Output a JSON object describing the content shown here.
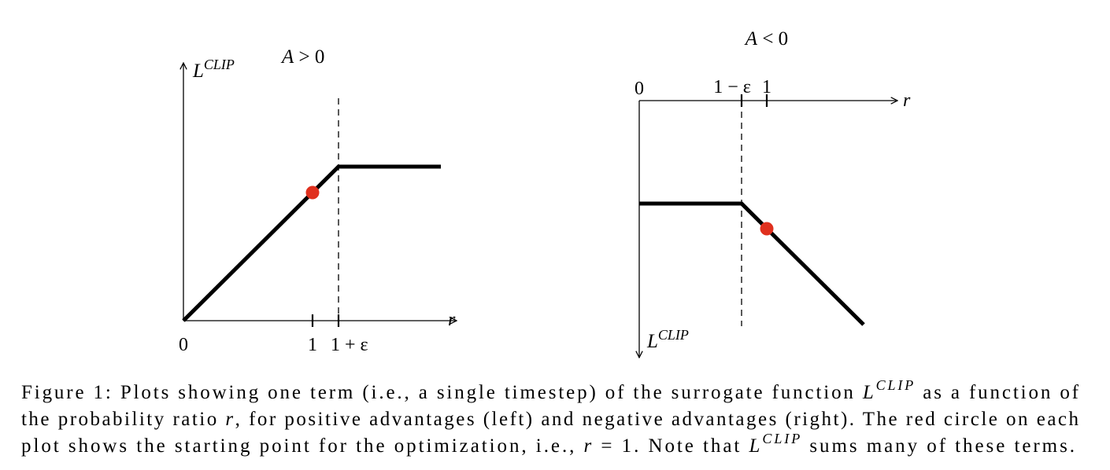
{
  "left_plot": {
    "title": {
      "symbol": "A",
      "relation": "> 0"
    },
    "y_axis": {
      "symbol": "L",
      "superscript": "CLIP"
    },
    "x_axis": "r",
    "ticks": [
      "0",
      "1",
      "1 + ε"
    ]
  },
  "right_plot": {
    "title": {
      "symbol": "A",
      "relation": "< 0"
    },
    "y_axis": {
      "symbol": "L",
      "superscript": "CLIP"
    },
    "x_axis": "r",
    "ticks": [
      "0",
      "1 − ε",
      "1"
    ]
  },
  "caption": {
    "lines": [
      [
        "Figure 1: Plots showing one term (i.e., a single timestep) of the surrogate function ",
        "L",
        "CLIP",
        " as a function of"
      ],
      [
        "the probability ratio ",
        "r",
        ", for positive advantages (left) and negative advantages (right). The red circle on each"
      ],
      [
        "plot shows the starting point for the optimization, i.e., ",
        "r",
        " = 1. Note that ",
        "L",
        "CLIP",
        " sums many of these terms."
      ]
    ]
  }
}
